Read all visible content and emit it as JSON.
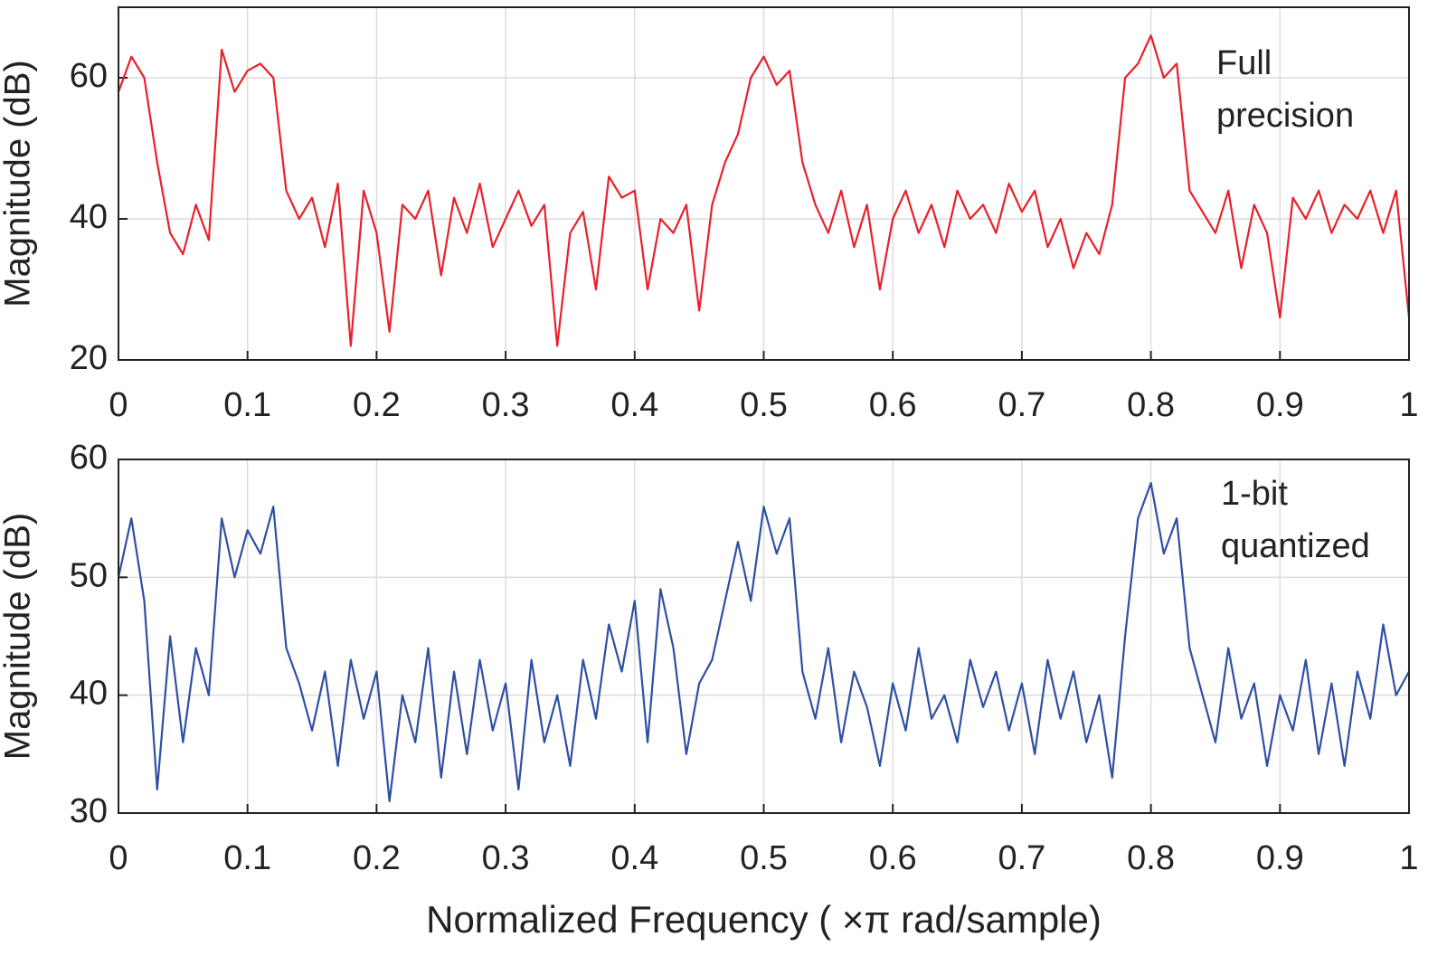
{
  "chart_data": [
    {
      "type": "line",
      "ylabel": "Magnitude (dB)",
      "annotation": [
        "Full",
        "precision"
      ],
      "xlim": [
        0,
        1
      ],
      "xticks": [
        0,
        0.1,
        0.2,
        0.3,
        0.4,
        0.5,
        0.6,
        0.7,
        0.8,
        0.9,
        1
      ],
      "ylim": [
        20,
        70
      ],
      "yticks": [
        20,
        40,
        60
      ],
      "grid": true,
      "x": [
        0,
        0.01,
        0.02,
        0.03,
        0.04,
        0.05,
        0.06,
        0.07,
        0.08,
        0.09,
        0.1,
        0.11,
        0.12,
        0.13,
        0.14,
        0.15,
        0.16,
        0.17,
        0.18,
        0.19,
        0.2,
        0.21,
        0.22,
        0.23,
        0.24,
        0.25,
        0.26,
        0.27,
        0.28,
        0.29,
        0.3,
        0.31,
        0.32,
        0.33,
        0.34,
        0.35,
        0.36,
        0.37,
        0.38,
        0.39,
        0.4,
        0.41,
        0.42,
        0.43,
        0.44,
        0.45,
        0.46,
        0.47,
        0.48,
        0.49,
        0.5,
        0.51,
        0.52,
        0.53,
        0.54,
        0.55,
        0.56,
        0.57,
        0.58,
        0.59,
        0.6,
        0.61,
        0.62,
        0.63,
        0.64,
        0.65,
        0.66,
        0.67,
        0.68,
        0.69,
        0.7,
        0.71,
        0.72,
        0.73,
        0.74,
        0.75,
        0.76,
        0.77,
        0.78,
        0.79,
        0.8,
        0.81,
        0.82,
        0.83,
        0.84,
        0.85,
        0.86,
        0.87,
        0.88,
        0.89,
        0.9,
        0.91,
        0.92,
        0.93,
        0.94,
        0.95,
        0.96,
        0.97,
        0.98,
        0.99,
        1
      ],
      "series": [
        {
          "color": "#e8202a",
          "values": [
            58,
            63,
            60,
            48,
            38,
            35,
            42,
            37,
            64,
            58,
            61,
            62,
            60,
            44,
            40,
            43,
            36,
            45,
            22,
            44,
            38,
            24,
            42,
            40,
            44,
            32,
            43,
            38,
            45,
            36,
            40,
            44,
            39,
            42,
            22,
            38,
            41,
            30,
            46,
            43,
            44,
            30,
            40,
            38,
            42,
            27,
            42,
            48,
            52,
            60,
            63,
            59,
            61,
            48,
            42,
            38,
            44,
            36,
            42,
            30,
            40,
            44,
            38,
            42,
            36,
            44,
            40,
            42,
            38,
            45,
            41,
            44,
            36,
            40,
            33,
            38,
            35,
            42,
            60,
            62,
            66,
            60,
            62,
            44,
            41,
            38,
            44,
            33,
            42,
            38,
            26,
            43,
            40,
            44,
            38,
            42,
            40,
            44,
            38,
            44,
            26
          ]
        }
      ]
    },
    {
      "type": "line",
      "ylabel": "Magnitude (dB)",
      "xlabel": "Normalized Frequency  ( ×π rad/sample)",
      "annotation": [
        "1-bit",
        "quantized"
      ],
      "xlim": [
        0,
        1
      ],
      "xticks": [
        0,
        0.1,
        0.2,
        0.3,
        0.4,
        0.5,
        0.6,
        0.7,
        0.8,
        0.9,
        1
      ],
      "ylim": [
        30,
        60
      ],
      "yticks": [
        30,
        40,
        50,
        60
      ],
      "grid": true,
      "x": [
        0,
        0.01,
        0.02,
        0.03,
        0.04,
        0.05,
        0.06,
        0.07,
        0.08,
        0.09,
        0.1,
        0.11,
        0.12,
        0.13,
        0.14,
        0.15,
        0.16,
        0.17,
        0.18,
        0.19,
        0.2,
        0.21,
        0.22,
        0.23,
        0.24,
        0.25,
        0.26,
        0.27,
        0.28,
        0.29,
        0.3,
        0.31,
        0.32,
        0.33,
        0.34,
        0.35,
        0.36,
        0.37,
        0.38,
        0.39,
        0.4,
        0.41,
        0.42,
        0.43,
        0.44,
        0.45,
        0.46,
        0.47,
        0.48,
        0.49,
        0.5,
        0.51,
        0.52,
        0.53,
        0.54,
        0.55,
        0.56,
        0.57,
        0.58,
        0.59,
        0.6,
        0.61,
        0.62,
        0.63,
        0.64,
        0.65,
        0.66,
        0.67,
        0.68,
        0.69,
        0.7,
        0.71,
        0.72,
        0.73,
        0.74,
        0.75,
        0.76,
        0.77,
        0.78,
        0.79,
        0.8,
        0.81,
        0.82,
        0.83,
        0.84,
        0.85,
        0.86,
        0.87,
        0.88,
        0.89,
        0.9,
        0.91,
        0.92,
        0.93,
        0.94,
        0.95,
        0.96,
        0.97,
        0.98,
        0.99,
        1
      ],
      "series": [
        {
          "color": "#2e4fa3",
          "values": [
            50,
            55,
            48,
            32,
            45,
            36,
            44,
            40,
            55,
            50,
            54,
            52,
            56,
            44,
            41,
            37,
            42,
            34,
            43,
            38,
            42,
            31,
            40,
            36,
            44,
            33,
            42,
            35,
            43,
            37,
            41,
            32,
            43,
            36,
            40,
            34,
            43,
            38,
            46,
            42,
            48,
            36,
            49,
            44,
            35,
            41,
            43,
            48,
            53,
            48,
            56,
            52,
            55,
            42,
            38,
            44,
            36,
            42,
            39,
            34,
            41,
            37,
            44,
            38,
            40,
            36,
            43,
            39,
            42,
            37,
            41,
            35,
            43,
            38,
            42,
            36,
            40,
            33,
            45,
            55,
            58,
            52,
            55,
            44,
            40,
            36,
            44,
            38,
            41,
            34,
            40,
            37,
            43,
            35,
            41,
            34,
            42,
            38,
            46,
            40,
            42
          ]
        }
      ]
    }
  ]
}
